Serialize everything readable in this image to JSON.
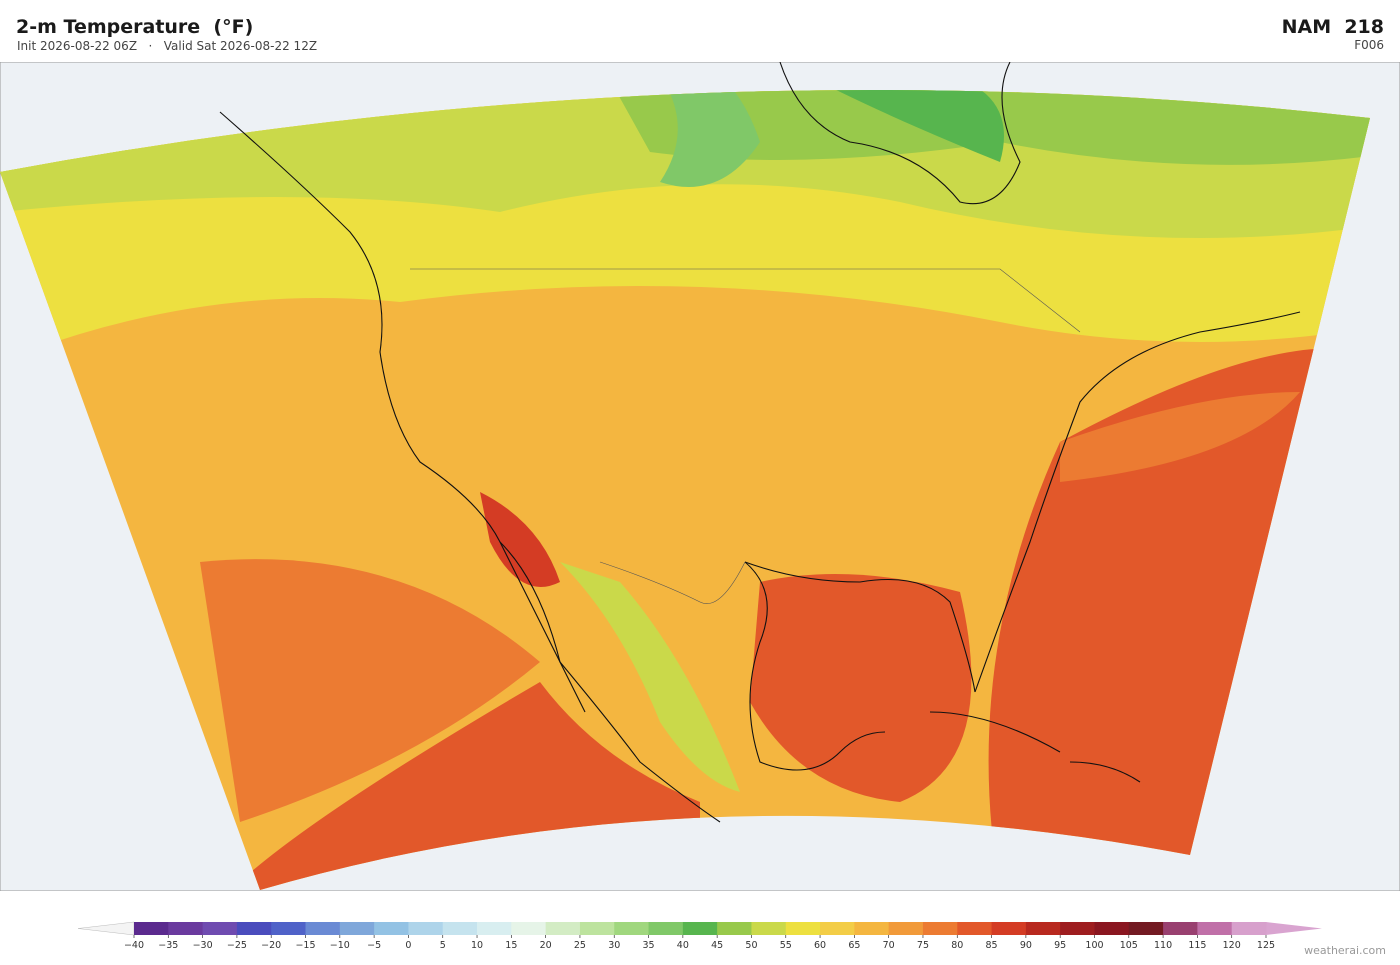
{
  "header": {
    "title": "2-m Temperature  (°F)",
    "init": "Init 2026-08-22 06Z",
    "separator": "·",
    "valid": "Valid Sat 2026-08-22 12Z",
    "model": "NAM  218",
    "forecast_hour": "F006"
  },
  "colorbar": {
    "levels": [
      {
        "value": -40,
        "label": "−40"
      },
      {
        "value": -35,
        "label": "−35"
      },
      {
        "value": -30,
        "label": "−30"
      },
      {
        "value": -25,
        "label": "−25"
      },
      {
        "value": -20,
        "label": "−20"
      },
      {
        "value": -15,
        "label": "−15"
      },
      {
        "value": -10,
        "label": "−10"
      },
      {
        "value": -5,
        "label": "−5"
      },
      0,
      5,
      10,
      15,
      20,
      25,
      30,
      35,
      40,
      45,
      50,
      55,
      60,
      65,
      70,
      75,
      80,
      85,
      90,
      95,
      100,
      105,
      110,
      115,
      120,
      125
    ],
    "colors": [
      "#5b2a8e",
      "#6a3a9e",
      "#6f4bb0",
      "#4a4cbd",
      "#4f62c8",
      "#6a8ad4",
      "#7fa7da",
      "#93c2e4",
      "#aed4ea",
      "#c5e3ee",
      "#d8eef0",
      "#e6f4e8",
      "#d3ecc4",
      "#bde39e",
      "#a0d77e",
      "#80c868",
      "#57b54e",
      "#98c94b",
      "#cad94a",
      "#ede040",
      "#f3cd47",
      "#f4b640",
      "#f19a3a",
      "#ec7b32",
      "#e2582a",
      "#d43c24",
      "#b8291f",
      "#9e1d1f",
      "#8a1620",
      "#731a22",
      "#994070",
      "#c070a8",
      "#d7a0cc"
    ],
    "under_color": "#f4f4f4",
    "over_color": "#d9a4d0"
  },
  "watermark": "weatherai.com"
}
